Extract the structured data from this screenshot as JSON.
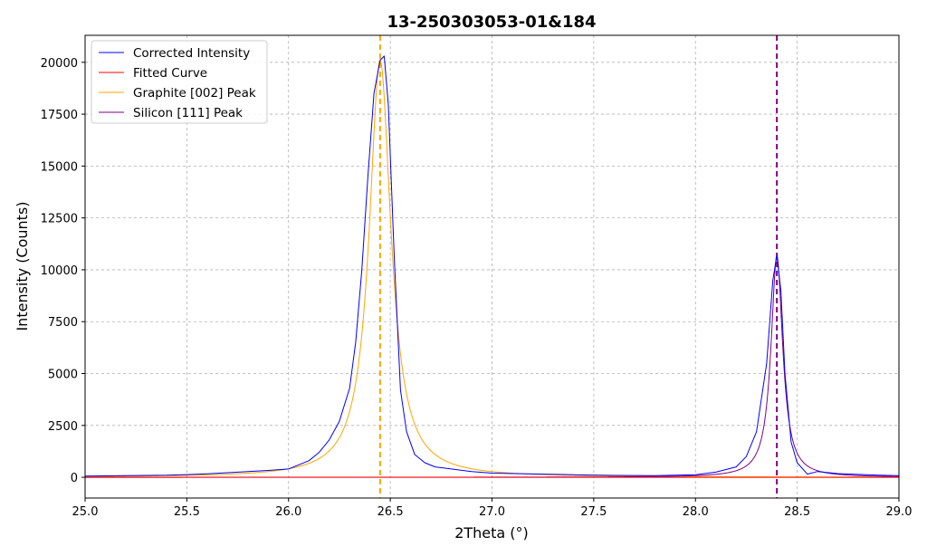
{
  "chart_data": {
    "type": "line",
    "title": "13-250303053-01&184",
    "xlabel": "2Theta (°)",
    "ylabel": "Intensity (Counts)",
    "xlim": [
      25.0,
      29.0
    ],
    "ylim": [
      -1000,
      21300
    ],
    "xticks": [
      25.0,
      25.5,
      26.0,
      26.5,
      27.0,
      27.5,
      28.0,
      28.5,
      29.0
    ],
    "xtick_labels": [
      "25.0",
      "25.5",
      "26.0",
      "26.5",
      "27.0",
      "27.5",
      "28.0",
      "28.5",
      "29.0"
    ],
    "yticks": [
      0,
      2500,
      5000,
      7500,
      10000,
      12500,
      15000,
      17500,
      20000
    ],
    "ytick_labels": [
      "0",
      "2500",
      "5000",
      "7500",
      "10000",
      "12500",
      "15000",
      "17500",
      "20000"
    ],
    "grid": true,
    "legend_position": "top-left",
    "vlines": [
      {
        "x": 26.45,
        "color": "#ffa500",
        "style": "dashed"
      },
      {
        "x": 28.4,
        "color": "#800080",
        "style": "dashed"
      }
    ],
    "series": [
      {
        "name": "Corrected Intensity",
        "color": "#0000ff",
        "x": [
          25.0,
          25.1,
          25.2,
          25.3,
          25.4,
          25.5,
          25.6,
          25.7,
          25.8,
          25.9,
          26.0,
          26.05,
          26.1,
          26.15,
          26.2,
          26.25,
          26.3,
          26.33,
          26.36,
          26.39,
          26.42,
          26.45,
          26.47,
          26.49,
          26.52,
          26.55,
          26.58,
          26.62,
          26.67,
          26.72,
          26.8,
          26.9,
          27.0,
          27.2,
          27.4,
          27.6,
          27.8,
          28.0,
          28.1,
          28.2,
          28.25,
          28.3,
          28.35,
          28.38,
          28.4,
          28.42,
          28.44,
          28.47,
          28.5,
          28.55,
          28.6,
          28.7,
          28.8,
          28.9,
          29.0
        ],
        "y": [
          60,
          70,
          80,
          90,
          100,
          130,
          170,
          220,
          280,
          330,
          400,
          600,
          800,
          1200,
          1800,
          2700,
          4300,
          6500,
          10000,
          14500,
          18500,
          20100,
          20300,
          18000,
          10500,
          4200,
          2200,
          1100,
          700,
          500,
          400,
          280,
          200,
          160,
          120,
          90,
          80,
          120,
          250,
          500,
          1000,
          2200,
          5500,
          9500,
          10700,
          9000,
          5000,
          1700,
          700,
          150,
          280,
          180,
          140,
          100,
          80
        ]
      },
      {
        "name": "Fitted Curve",
        "color": "#ff0000",
        "x": [
          25.0,
          29.0
        ],
        "y": [
          0,
          0
        ]
      },
      {
        "name": "Graphite [002] Peak",
        "color": "#ffa500",
        "model": "lorentzian",
        "center": 26.45,
        "amplitude": 20100,
        "fwhm": 0.13
      },
      {
        "name": "Silicon [111] Peak",
        "color": "#800080",
        "model": "lorentzian",
        "center": 28.4,
        "amplitude": 10700,
        "fwhm": 0.07
      }
    ]
  }
}
